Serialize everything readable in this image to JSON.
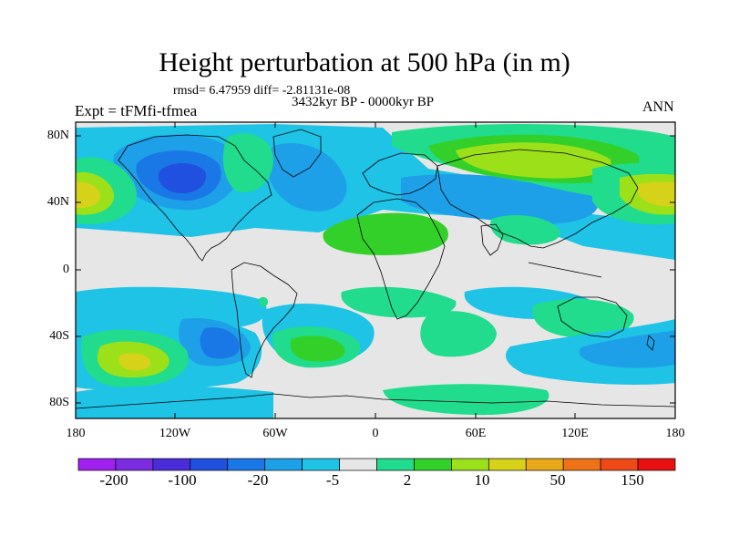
{
  "header": {
    "title": "Height perturbation at 500 hPa (in m)",
    "stats": "rmsd= 6.47959 diff= -2.81131e-08",
    "period": "3432kyr BP - 0000kyr BP",
    "experiment": "Expt = tFMfi-tfmea",
    "season": "ANN"
  },
  "axes": {
    "lat_labels": [
      "80N",
      "40N",
      "0",
      "40S",
      "80S"
    ],
    "lon_labels": [
      "180",
      "120W",
      "60W",
      "0",
      "60E",
      "120E",
      "180"
    ]
  },
  "colorbar": {
    "labels": [
      "-200",
      "-100",
      "-20",
      "-5",
      "2",
      "10",
      "50",
      "150"
    ],
    "colors": [
      "#a020f0",
      "#7b2ce0",
      "#4a2cd8",
      "#2050e0",
      "#1a78e6",
      "#1ea0e8",
      "#1ec3e6",
      "#e6e6e6",
      "#20dc8c",
      "#33d02a",
      "#9ce01a",
      "#d6d21a",
      "#e8a818",
      "#ee7218",
      "#ee4a18",
      "#e81010"
    ]
  },
  "field_colors": {
    "neutral": "#e6e6e6",
    "pos_weak": "#20dc8c",
    "pos_mid": "#33d02a",
    "pos_strong": "#9ce01a",
    "pos_max": "#d6d21a",
    "neg_weak": "#1ec3e6",
    "neg_mid": "#1ea0e8",
    "neg_strong": "#1a78e6",
    "neg_max": "#2050e0"
  }
}
